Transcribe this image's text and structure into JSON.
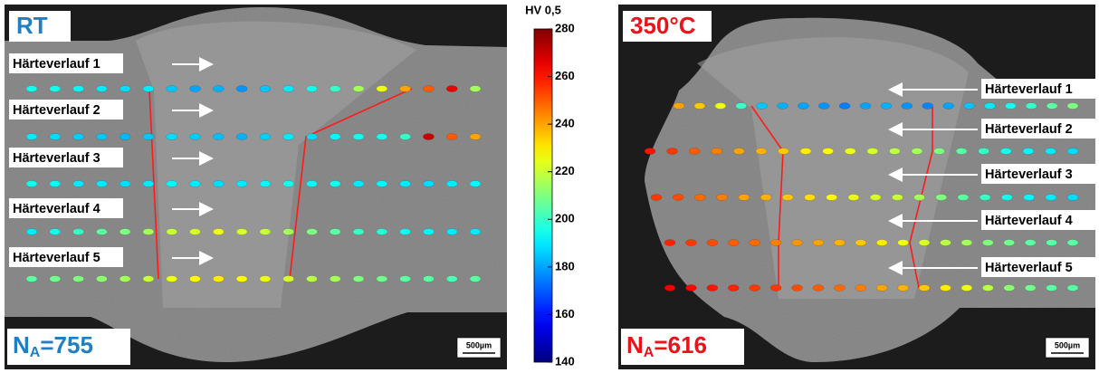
{
  "colorbar": {
    "title": "HV 0,5",
    "lim": [
      140,
      280
    ],
    "ticks": [
      140,
      160,
      180,
      200,
      220,
      240,
      260,
      280
    ]
  },
  "panels": [
    {
      "label": "RT",
      "label_color": "#1f7fc2",
      "n_symbol": "N",
      "n_subscript": "A",
      "n_value": "=755",
      "scale": "500µm",
      "traces": [
        {
          "label": "Härteverlauf 1",
          "values": [
            195,
            195,
            192,
            190,
            188,
            190,
            185,
            180,
            182,
            178,
            185,
            190,
            195,
            200,
            215,
            225,
            240,
            250,
            265,
            215
          ]
        },
        {
          "label": "Härteverlauf 2",
          "values": [
            190,
            188,
            186,
            185,
            183,
            185,
            188,
            186,
            184,
            182,
            186,
            190,
            188,
            192,
            195,
            195,
            200,
            270,
            250,
            240
          ]
        },
        {
          "label": "Härteverlauf 3",
          "values": [
            195,
            193,
            190,
            190,
            188,
            190,
            192,
            190,
            188,
            190,
            192,
            195,
            193,
            195,
            190,
            192,
            190,
            188,
            190,
            192
          ]
        },
        {
          "label": "Härteverlauf 4",
          "values": [
            190,
            195,
            200,
            205,
            210,
            215,
            220,
            222,
            225,
            222,
            220,
            215,
            210,
            205,
            200,
            198,
            195,
            192,
            190,
            190
          ]
        },
        {
          "label": "Härteverlauf 5",
          "values": [
            205,
            208,
            210,
            212,
            215,
            220,
            225,
            228,
            230,
            228,
            225,
            222,
            218,
            215,
            210,
            208,
            205,
            205,
            203,
            205
          ]
        }
      ]
    },
    {
      "label": "350°C",
      "label_color": "#e8141a",
      "n_symbol": "N",
      "n_subscript": "A",
      "n_value": "=616",
      "scale": "500µm",
      "traces": [
        {
          "label": "Härteverlauf 1",
          "values": [
            240,
            235,
            225,
            200,
            185,
            182,
            180,
            178,
            175,
            180,
            182,
            178,
            176,
            180,
            185,
            190,
            195,
            200,
            205,
            210
          ]
        },
        {
          "label": "Härteverlauf 2",
          "values": [
            260,
            255,
            250,
            245,
            240,
            238,
            235,
            230,
            228,
            225,
            222,
            218,
            215,
            210,
            205,
            200,
            195,
            192,
            190,
            188
          ]
        },
        {
          "label": "Härteverlauf 3",
          "values": [
            255,
            252,
            248,
            245,
            240,
            238,
            235,
            232,
            228,
            225,
            222,
            220,
            215,
            210,
            205,
            200,
            195,
            192,
            190,
            188
          ]
        },
        {
          "label": "Härteverlauf 4",
          "values": [
            258,
            255,
            252,
            250,
            248,
            245,
            242,
            240,
            238,
            235,
            230,
            225,
            222,
            218,
            215,
            210,
            208,
            205,
            205,
            205
          ]
        },
        {
          "label": "Härteverlauf 5",
          "values": [
            265,
            262,
            260,
            258,
            255,
            255,
            252,
            250,
            248,
            245,
            240,
            238,
            235,
            230,
            225,
            218,
            212,
            208,
            205,
            205
          ]
        }
      ]
    }
  ]
}
